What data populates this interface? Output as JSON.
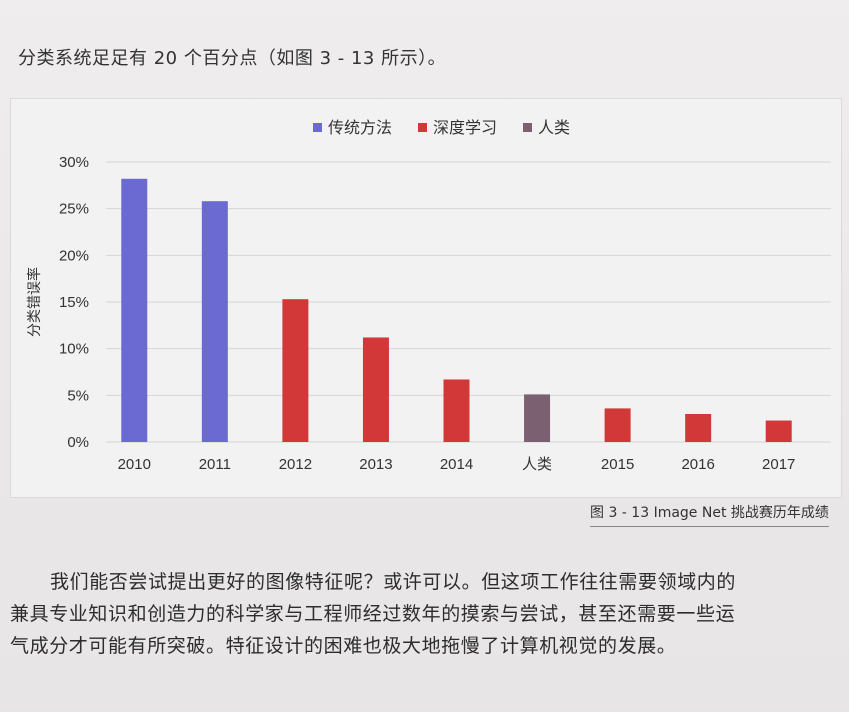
{
  "intro_text": "分类系统足足有 20 个百分点（如图 3 - 13 所示）。",
  "caption": "图 3 - 13   Image Net 挑战赛历年成绩",
  "body": {
    "lines": [
      "我们能否尝试提出更好的图像特征呢？或许可以。但这项工作往往需要领域内的",
      "兼具专业知识和创造力的科学家与工程师经过数年的摸索与尝试，甚至还需要一些运",
      "气成分才可能有所突破。特征设计的困难也极大地拖慢了计算机视觉的发展。"
    ]
  },
  "chart_data": {
    "type": "bar",
    "categories": [
      "2010",
      "2011",
      "2012",
      "2013",
      "2014",
      "人类",
      "2015",
      "2016",
      "2017"
    ],
    "values": [
      28.2,
      25.8,
      15.3,
      11.2,
      6.7,
      5.1,
      3.6,
      3.0,
      2.3
    ],
    "groups": [
      "传统方法",
      "传统方法",
      "深度学习",
      "深度学习",
      "深度学习",
      "人类",
      "深度学习",
      "深度学习",
      "深度学习"
    ],
    "legend": [
      {
        "name": "传统方法",
        "color": "#6a6ad2"
      },
      {
        "name": "深度学习",
        "color": "#d23838"
      },
      {
        "name": "人类",
        "color": "#7a6070"
      }
    ],
    "ylabel": "分类错误率",
    "yticks": [
      "0%",
      "5%",
      "10%",
      "15%",
      "20%",
      "25%",
      "30%"
    ],
    "ylim": [
      0,
      30
    ],
    "grid": true,
    "legend_position": "top-center"
  }
}
